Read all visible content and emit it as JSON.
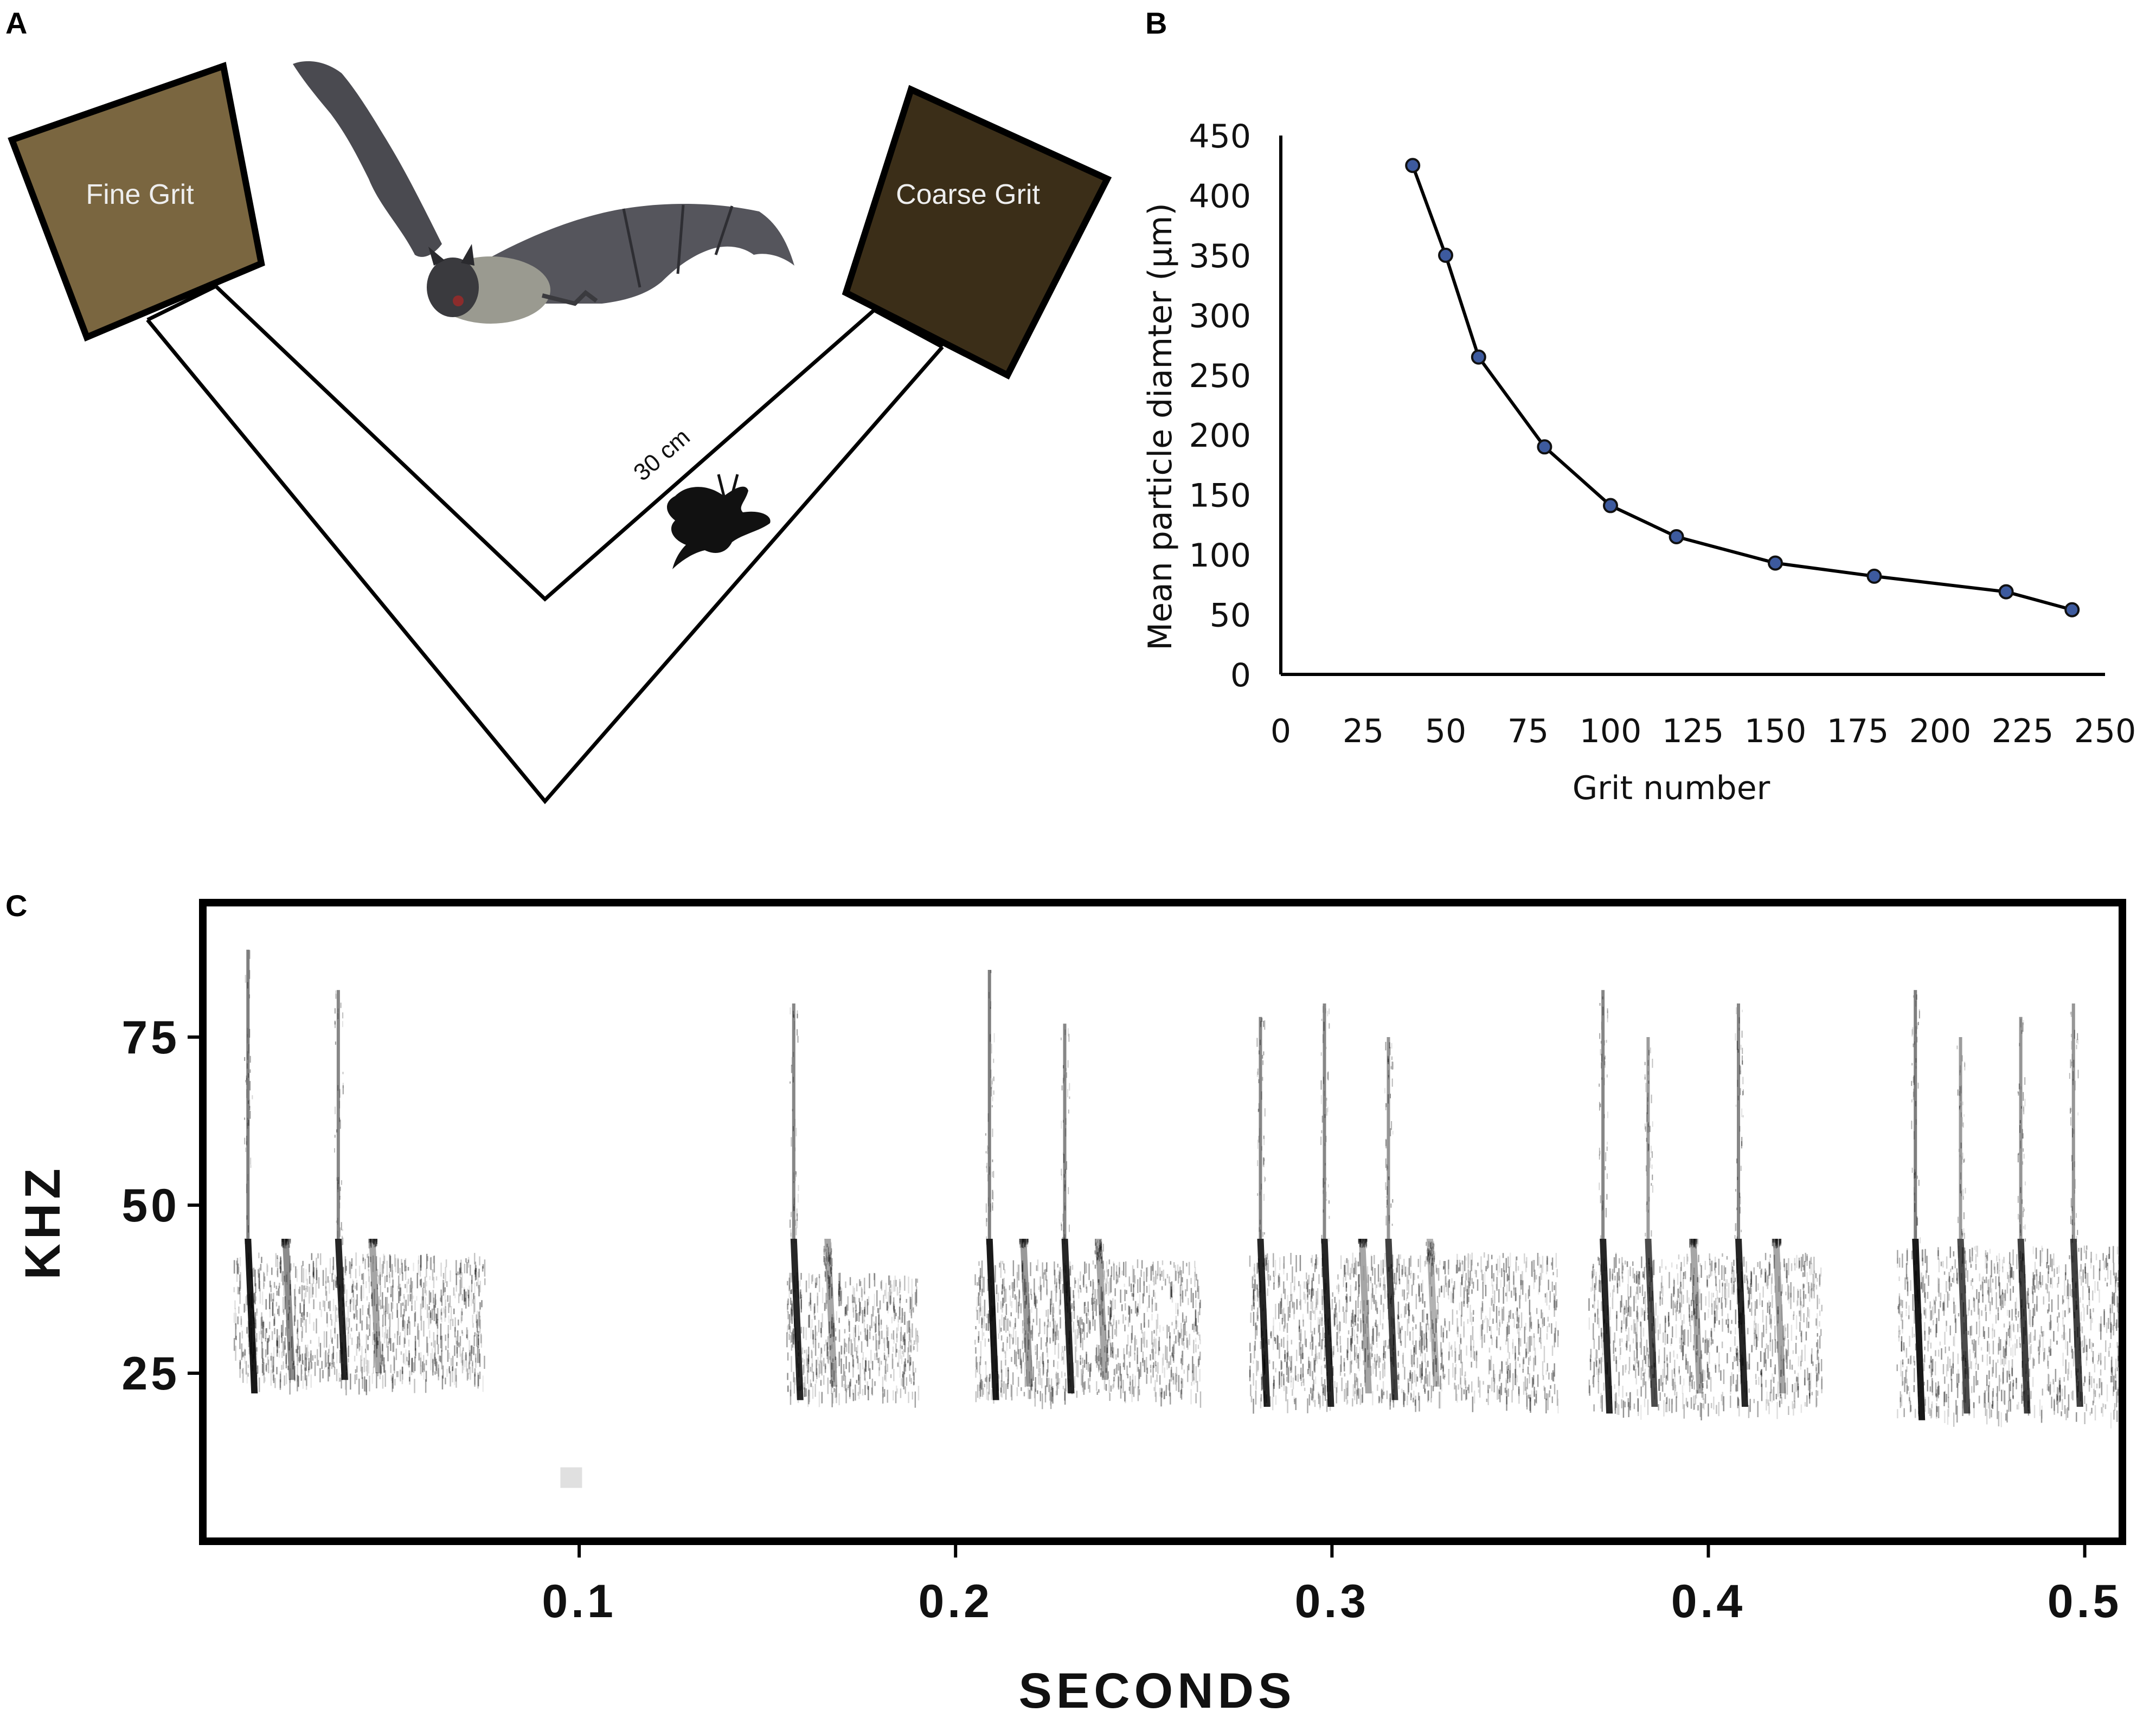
{
  "panels": {
    "a": {
      "label": "A",
      "fine_box_label": "Fine Grit",
      "coarse_box_label": "Coarse Grit",
      "dimension_label": "30 cm",
      "colors": {
        "fine": "#7a6640",
        "coarse": "#3b2e18",
        "stroke": "#000000"
      },
      "icons": [
        "bat-photo-icon",
        "moth-silhouette-icon"
      ]
    },
    "b": {
      "label": "B"
    },
    "c": {
      "label": "C"
    }
  },
  "chart_data": [
    {
      "panel": "B",
      "type": "line",
      "xlabel": "Grit number",
      "ylabel": "Mean particle diamter (µm)",
      "xlim": [
        0,
        250
      ],
      "ylim": [
        0,
        450
      ],
      "xticks": [
        0,
        25,
        50,
        75,
        100,
        125,
        150,
        175,
        200,
        225,
        250
      ],
      "yticks": [
        0,
        50,
        100,
        150,
        200,
        250,
        300,
        350,
        400,
        450
      ],
      "marker_color": "#3d5a9e",
      "line_color": "#000000",
      "x": [
        40,
        50,
        60,
        80,
        100,
        120,
        150,
        180,
        220,
        240
      ],
      "y": [
        425,
        350,
        265,
        190,
        141,
        115,
        93,
        82,
        69,
        54
      ]
    },
    {
      "panel": "C",
      "type": "spectrogram",
      "xlabel": "SECONDS",
      "ylabel": "KHZ",
      "xlim": [
        0,
        0.51
      ],
      "ylim": [
        0,
        95
      ],
      "xticks": [
        "0.1",
        "0.2",
        "0.3",
        "0.4",
        "0.5"
      ],
      "yticks": [
        "25",
        "50",
        "75"
      ],
      "calls": [
        {
          "t": 0.012,
          "fmax": 88,
          "fmin": 22,
          "intensity": 0.9
        },
        {
          "t": 0.022,
          "fmax": 45,
          "fmin": 24,
          "intensity": 0.45
        },
        {
          "t": 0.036,
          "fmax": 82,
          "fmin": 24,
          "intensity": 0.85
        },
        {
          "t": 0.045,
          "fmax": 45,
          "fmin": 25,
          "intensity": 0.35
        },
        {
          "t": 0.157,
          "fmax": 80,
          "fmin": 21,
          "intensity": 0.85
        },
        {
          "t": 0.166,
          "fmax": 40,
          "fmin": 23,
          "intensity": 0.35
        },
        {
          "t": 0.209,
          "fmax": 85,
          "fmin": 21,
          "intensity": 0.9
        },
        {
          "t": 0.218,
          "fmax": 45,
          "fmin": 23,
          "intensity": 0.4
        },
        {
          "t": 0.229,
          "fmax": 77,
          "fmin": 22,
          "intensity": 0.85
        },
        {
          "t": 0.238,
          "fmax": 42,
          "fmin": 24,
          "intensity": 0.35
        },
        {
          "t": 0.281,
          "fmax": 78,
          "fmin": 20,
          "intensity": 0.85
        },
        {
          "t": 0.298,
          "fmax": 80,
          "fmin": 20,
          "intensity": 0.85
        },
        {
          "t": 0.308,
          "fmax": 45,
          "fmin": 22,
          "intensity": 0.35
        },
        {
          "t": 0.315,
          "fmax": 75,
          "fmin": 21,
          "intensity": 0.75
        },
        {
          "t": 0.326,
          "fmax": 42,
          "fmin": 23,
          "intensity": 0.3
        },
        {
          "t": 0.372,
          "fmax": 82,
          "fmin": 19,
          "intensity": 0.85
        },
        {
          "t": 0.384,
          "fmax": 75,
          "fmin": 20,
          "intensity": 0.7
        },
        {
          "t": 0.396,
          "fmax": 45,
          "fmin": 22,
          "intensity": 0.35
        },
        {
          "t": 0.408,
          "fmax": 80,
          "fmin": 20,
          "intensity": 0.85
        },
        {
          "t": 0.418,
          "fmax": 45,
          "fmin": 22,
          "intensity": 0.35
        },
        {
          "t": 0.455,
          "fmax": 82,
          "fmin": 18,
          "intensity": 0.9
        },
        {
          "t": 0.467,
          "fmax": 75,
          "fmin": 19,
          "intensity": 0.7
        },
        {
          "t": 0.483,
          "fmax": 78,
          "fmin": 19,
          "intensity": 0.75
        },
        {
          "t": 0.497,
          "fmax": 80,
          "fmin": 20,
          "intensity": 0.75
        }
      ],
      "noise_bands": [
        {
          "t0": 0.008,
          "t1": 0.075,
          "f0": 24,
          "f1": 43
        },
        {
          "t0": 0.155,
          "t1": 0.19,
          "f0": 22,
          "f1": 40
        },
        {
          "t0": 0.205,
          "t1": 0.265,
          "f0": 22,
          "f1": 42
        },
        {
          "t0": 0.278,
          "t1": 0.36,
          "f0": 21,
          "f1": 43
        },
        {
          "t0": 0.368,
          "t1": 0.43,
          "f0": 20,
          "f1": 43
        },
        {
          "t0": 0.45,
          "t1": 0.51,
          "f0": 19,
          "f1": 44
        }
      ]
    }
  ]
}
